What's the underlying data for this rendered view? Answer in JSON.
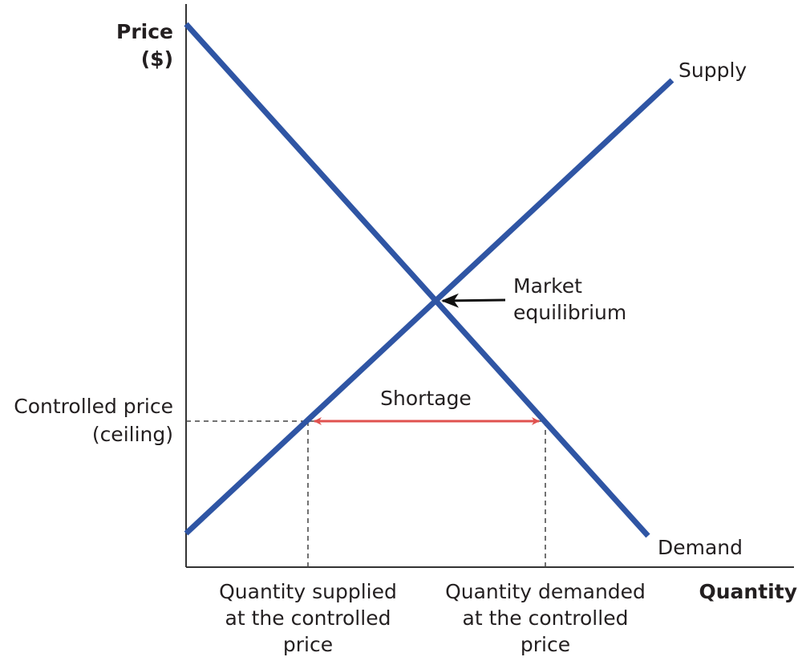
{
  "axes": {
    "y_label": [
      "Price",
      "($)"
    ],
    "x_label": "Quantity"
  },
  "curves": {
    "supply": "Supply",
    "demand": "Demand"
  },
  "annotations": {
    "equilibrium": [
      "Market",
      "equilibrium"
    ],
    "shortage": "Shortage",
    "controlled_price": [
      "Controlled price",
      "(ceiling)"
    ],
    "quantity_supplied": [
      "Quantity supplied",
      "at the controlled",
      "price"
    ],
    "quantity_demanded": [
      "Quantity demanded",
      "at the controlled",
      "price"
    ]
  }
}
